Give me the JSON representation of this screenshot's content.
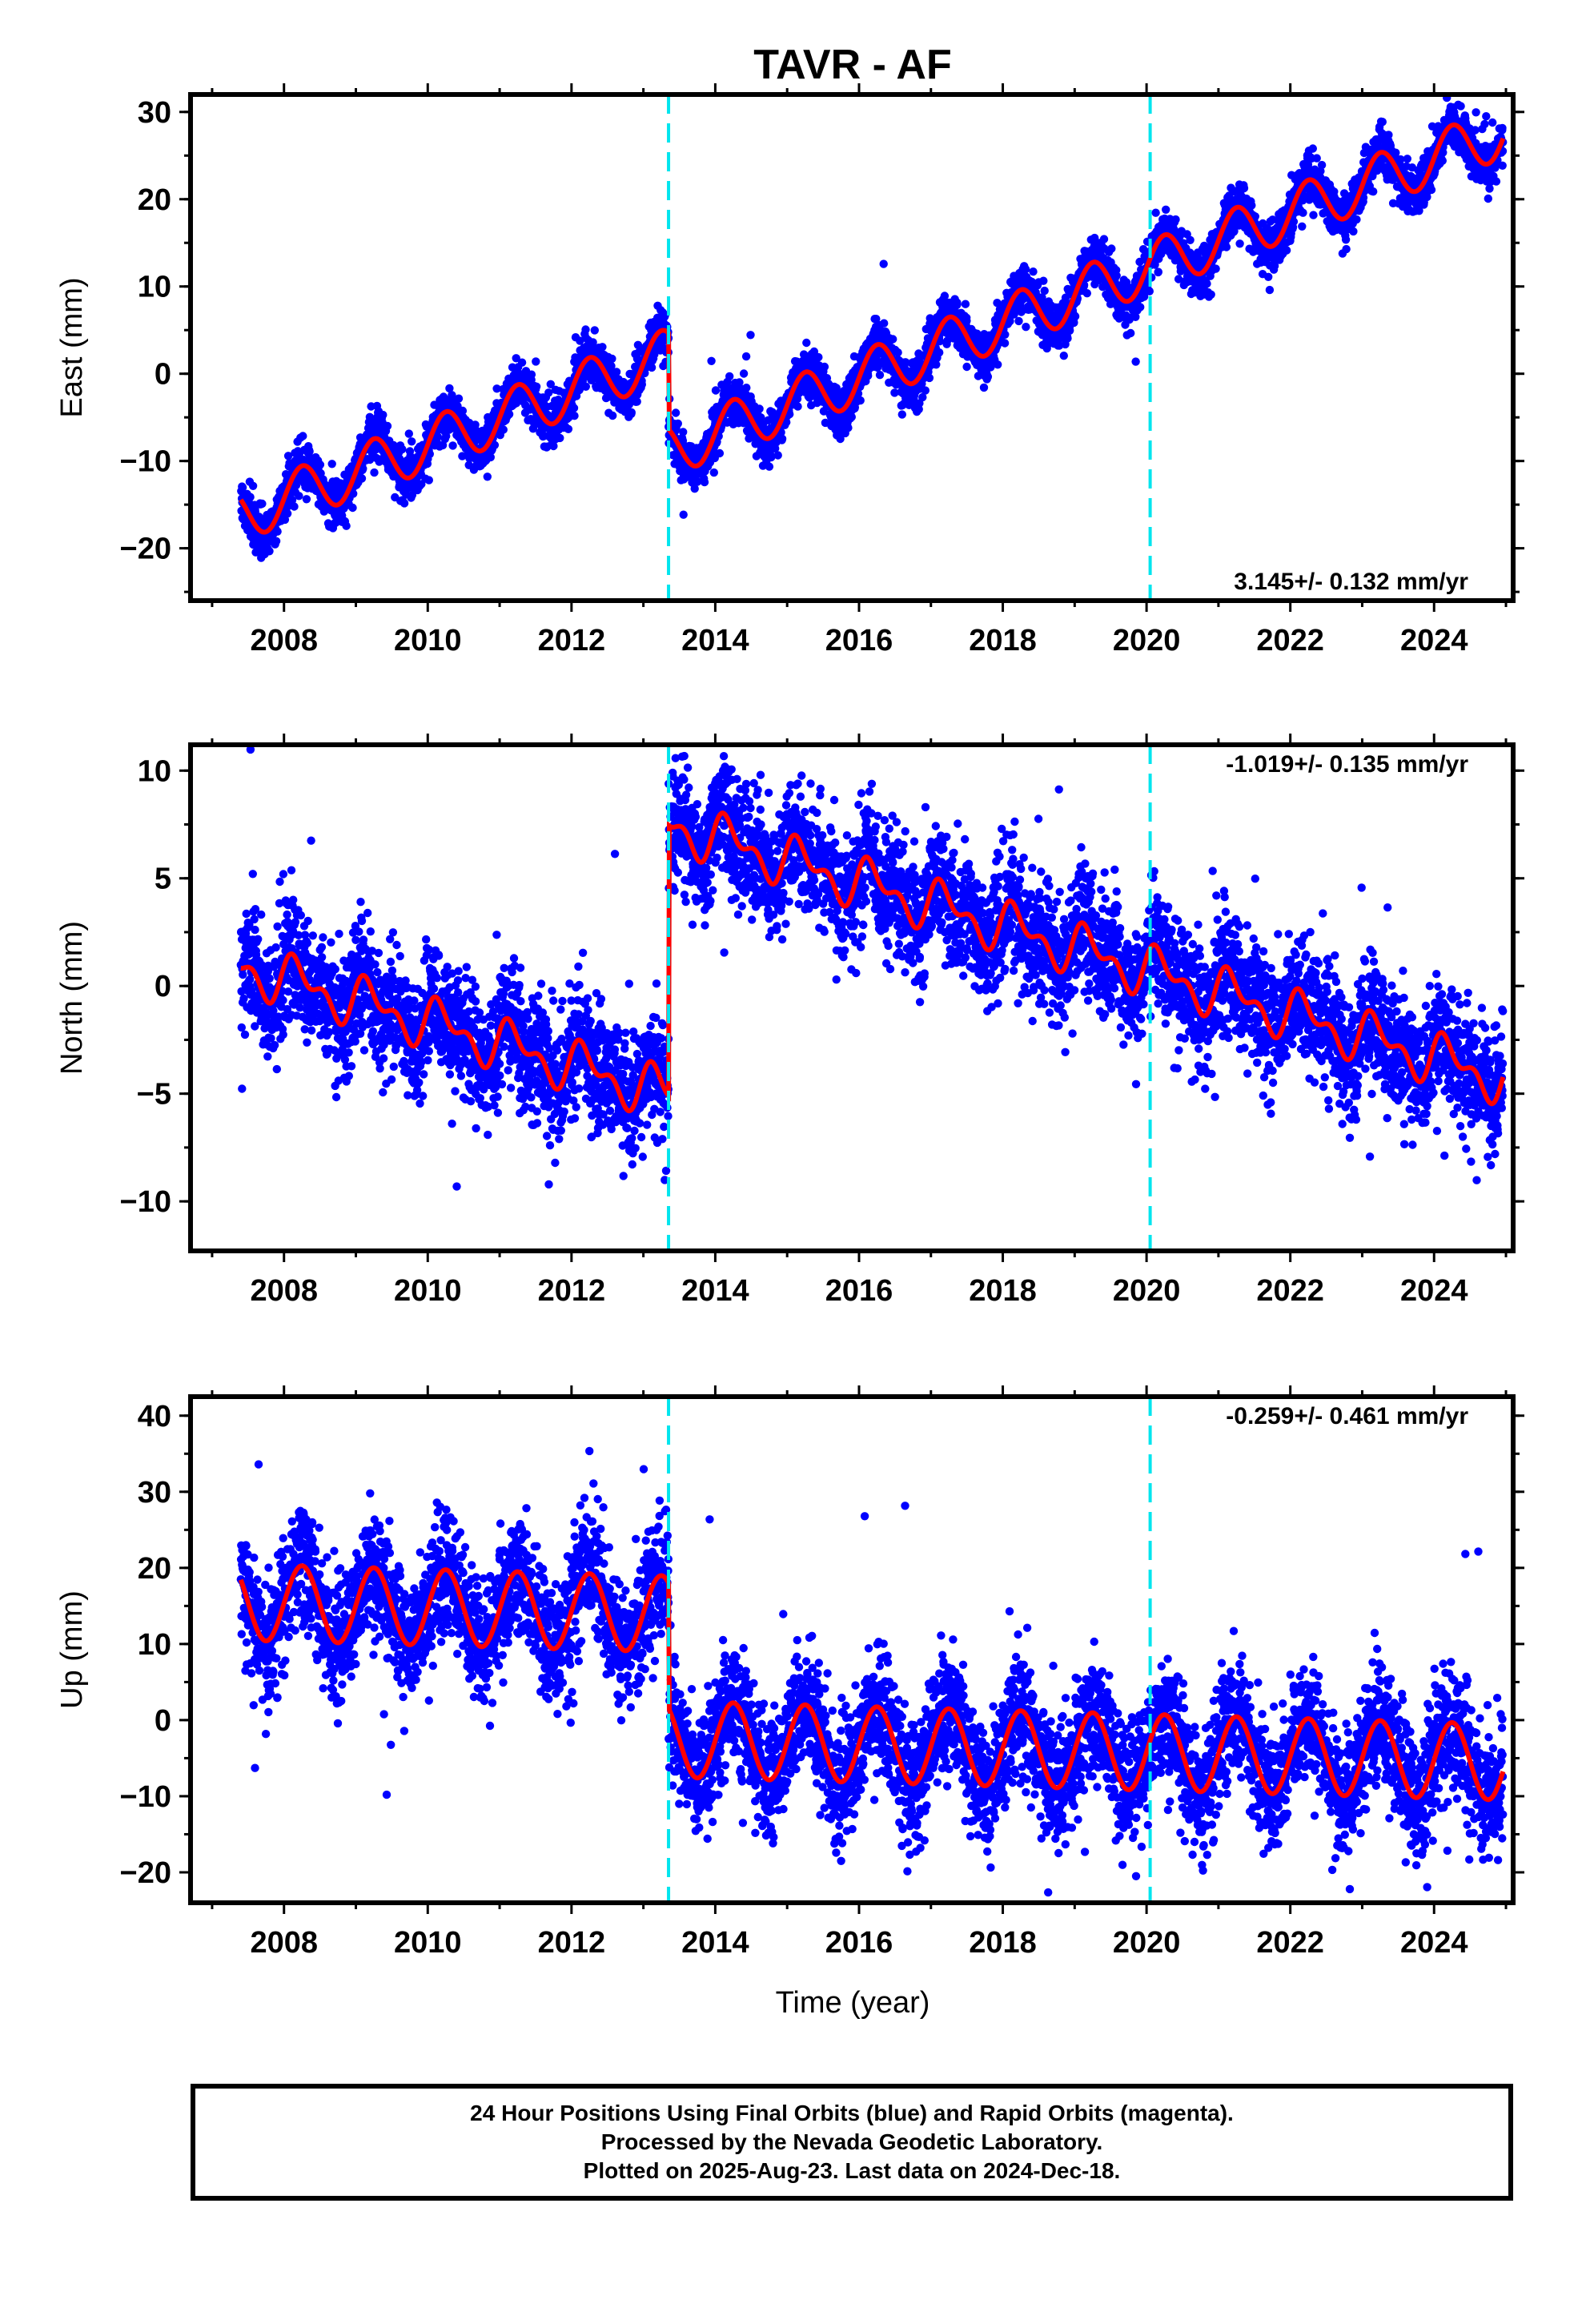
{
  "title": "TAVR - AF",
  "xlabel": "Time (year)",
  "footer": {
    "line1": "24 Hour Positions Using Final Orbits (blue) and Rapid Orbits (magenta).",
    "line2": "Processed by the Nevada Geodetic Laboratory.",
    "line3": "Plotted on 2025-Aug-23. Last data on 2024-Dec-18."
  },
  "chart_data": [
    {
      "type": "scatter",
      "name": "east",
      "ylabel": "East (mm)",
      "rate_label": "3.145+/- 0.132 mm/yr",
      "rate_position": "bottom-right",
      "xlim": [
        2006.7,
        2025.1
      ],
      "ylim": [
        -26,
        32
      ],
      "x_ticks": [
        2008,
        2010,
        2012,
        2014,
        2016,
        2018,
        2020,
        2022,
        2024
      ],
      "y_ticks": [
        -20,
        -10,
        0,
        10,
        20,
        30
      ],
      "breaks": [
        2013.35,
        2020.05
      ],
      "data_start": 2007.4,
      "data_end": 2024.96,
      "fit": [
        {
          "from": 2007.4,
          "to": 2013.35,
          "offset_at_start": -16.2,
          "rate": 3.1,
          "annual_amp": 3.0,
          "semiannual_amp": 0.0,
          "phase": 0.0
        },
        {
          "from": 2013.35,
          "to": 2024.96,
          "offset_at_start": -8.8,
          "rate": 3.145,
          "annual_amp": 3.0,
          "semiannual_amp": 0.0,
          "phase": 0.0
        }
      ],
      "noise": 1.3,
      "colors": {
        "points": "#0000ff",
        "fit": "#ff0000",
        "breaks": "#00e5ee"
      }
    },
    {
      "type": "scatter",
      "name": "north",
      "ylabel": "North (mm)",
      "rate_label": "-1.019+/- 0.135 mm/yr",
      "rate_position": "top-right",
      "xlim": [
        2006.7,
        2025.1
      ],
      "ylim": [
        -12.3,
        11.2
      ],
      "x_ticks": [
        2008,
        2010,
        2012,
        2014,
        2016,
        2018,
        2020,
        2022,
        2024
      ],
      "y_ticks": [
        -10,
        -5,
        0,
        5,
        10
      ],
      "breaks": [
        2013.35,
        2020.05
      ],
      "data_start": 2007.4,
      "data_end": 2024.96,
      "fit": [
        {
          "from": 2007.4,
          "to": 2013.35,
          "offset_at_start": 0.9,
          "rate": -1.0,
          "annual_amp": 0.9,
          "semiannual_amp": 0.6,
          "phase": 0.3
        },
        {
          "from": 2013.35,
          "to": 2024.96,
          "offset_at_start": 7.5,
          "rate": -1.019,
          "annual_amp": 0.9,
          "semiannual_amp": 0.6,
          "phase": 0.3
        }
      ],
      "noise": 1.4,
      "colors": {
        "points": "#0000ff",
        "fit": "#ff0000",
        "breaks": "#00e5ee"
      }
    },
    {
      "type": "scatter",
      "name": "up",
      "ylabel": "Up (mm)",
      "rate_label": "-0.259+/- 0.461 mm/yr",
      "rate_position": "top-right",
      "xlim": [
        2006.7,
        2025.1
      ],
      "ylim": [
        -24,
        42.5
      ],
      "x_ticks": [
        2008,
        2010,
        2012,
        2014,
        2016,
        2018,
        2020,
        2022,
        2024
      ],
      "y_ticks": [
        -20,
        -10,
        0,
        10,
        20,
        30,
        40
      ],
      "breaks": [
        2013.35,
        2020.05
      ],
      "data_start": 2007.4,
      "data_end": 2024.96,
      "fit": [
        {
          "from": 2007.4,
          "to": 2013.35,
          "offset_at_start": 15.5,
          "rate": -0.259,
          "annual_amp": 5.0,
          "semiannual_amp": 0.0,
          "phase": 0.0
        },
        {
          "from": 2013.35,
          "to": 2024.96,
          "offset_at_start": -2.5,
          "rate": -0.259,
          "annual_amp": 5.0,
          "semiannual_amp": 0.0,
          "phase": 0.0
        }
      ],
      "noise": 4.0,
      "colors": {
        "points": "#0000ff",
        "fit": "#ff0000",
        "breaks": "#00e5ee"
      }
    }
  ]
}
